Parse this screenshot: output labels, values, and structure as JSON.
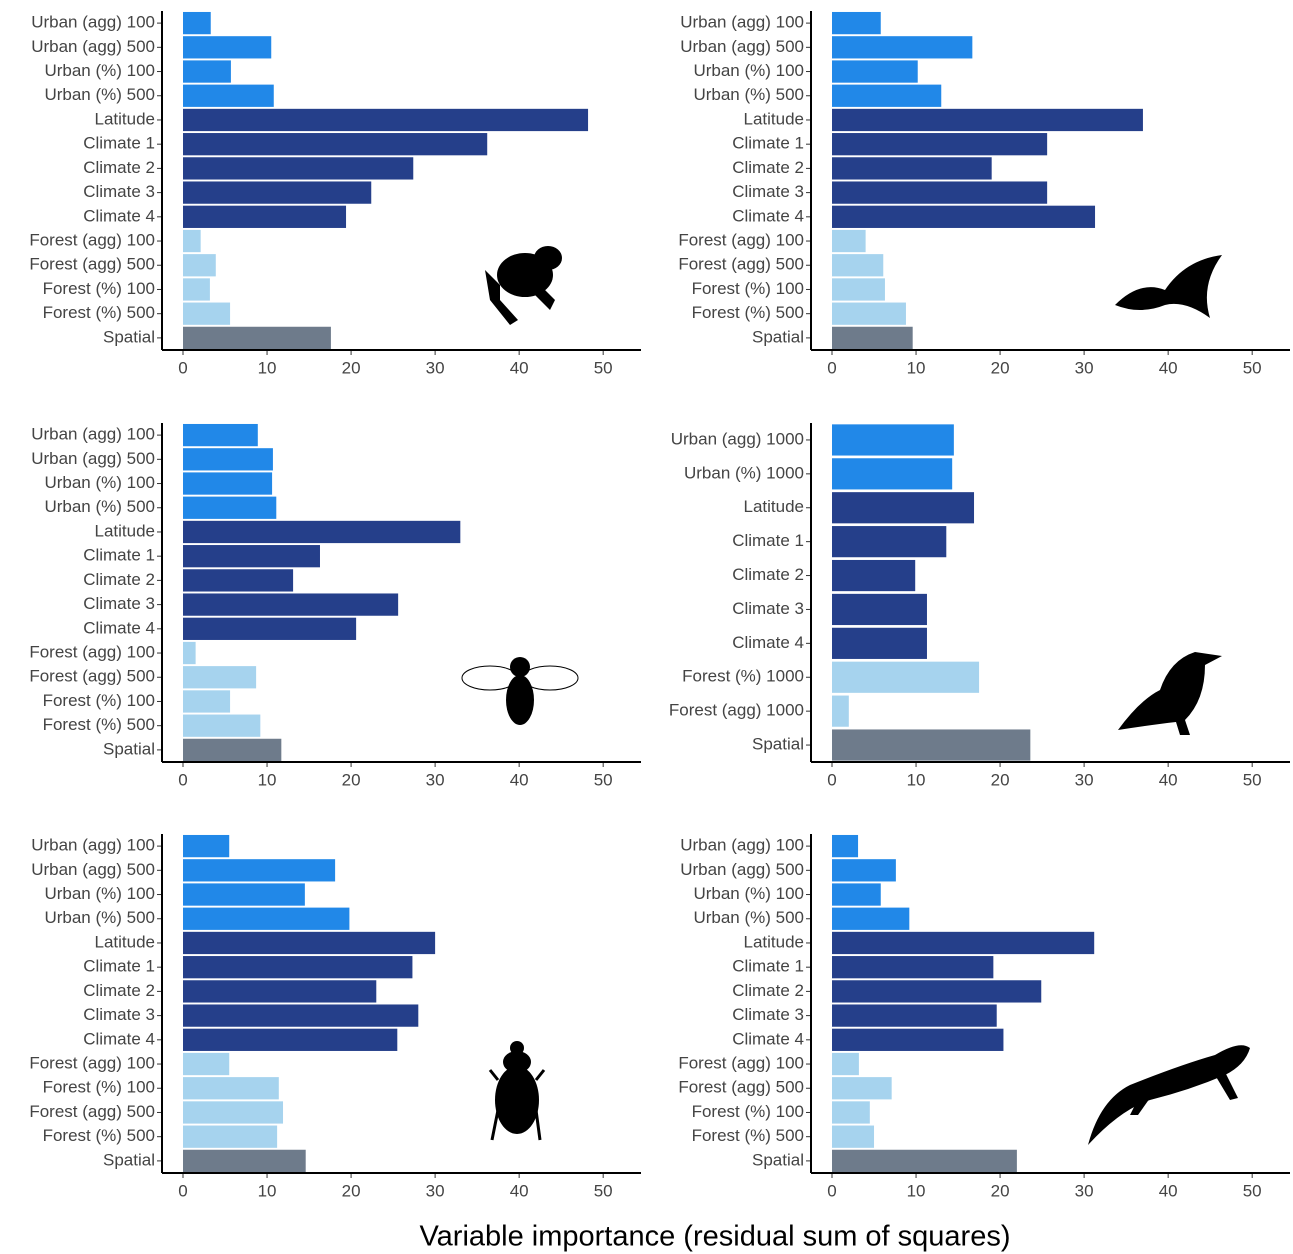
{
  "xlabel": "Variable importance (residual sum of squares)",
  "chart_data": [
    {
      "type": "barh",
      "xlim": [
        -2.5,
        54.5
      ],
      "xticks": [
        0,
        10,
        20,
        30,
        40,
        50
      ],
      "categories": [
        "Urban (agg) 100",
        "Urban (agg) 500",
        "Urban (%) 100",
        "Urban (%) 500",
        "Latitude",
        "Climate 1",
        "Climate 2",
        "Climate 3",
        "Climate 4",
        "Forest (agg) 100",
        "Forest (agg) 500",
        "Forest (%) 100",
        "Forest (%) 500",
        "Spatial"
      ],
      "values": [
        3.3,
        10.5,
        5.7,
        10.8,
        48.2,
        36.2,
        27.4,
        22.4,
        19.4,
        2.1,
        3.9,
        3.2,
        5.6,
        17.6
      ],
      "colors": [
        "#2188e8",
        "#2188e8",
        "#2188e8",
        "#2188e8",
        "#253f8a",
        "#253f8a",
        "#253f8a",
        "#253f8a",
        "#253f8a",
        "#a6d3ee",
        "#a6d3ee",
        "#a6d3ee",
        "#a6d3ee",
        "#6e7b8b"
      ]
    },
    {
      "type": "barh",
      "xlim": [
        -2.5,
        54.5
      ],
      "xticks": [
        0,
        10,
        20,
        30,
        40,
        50
      ],
      "categories": [
        "Urban (agg) 100",
        "Urban (agg) 500",
        "Urban (%) 100",
        "Urban (%) 500",
        "Latitude",
        "Climate 1",
        "Climate 2",
        "Climate 3",
        "Climate 4",
        "Forest (agg) 100",
        "Forest (agg) 500",
        "Forest (%) 100",
        "Forest (%) 500",
        "Spatial"
      ],
      "values": [
        5.8,
        16.7,
        10.2,
        13.0,
        37.0,
        25.6,
        19.0,
        25.6,
        31.3,
        4.0,
        6.1,
        6.3,
        8.8,
        9.6
      ],
      "colors": [
        "#2188e8",
        "#2188e8",
        "#2188e8",
        "#2188e8",
        "#253f8a",
        "#253f8a",
        "#253f8a",
        "#253f8a",
        "#253f8a",
        "#a6d3ee",
        "#a6d3ee",
        "#a6d3ee",
        "#a6d3ee",
        "#6e7b8b"
      ]
    },
    {
      "type": "barh",
      "xlim": [
        -2.5,
        54.5
      ],
      "xticks": [
        0,
        10,
        20,
        30,
        40,
        50
      ],
      "categories": [
        "Urban (agg) 100",
        "Urban (agg) 500",
        "Urban (%) 100",
        "Urban (%) 500",
        "Latitude",
        "Climate 1",
        "Climate 2",
        "Climate 3",
        "Climate 4",
        "Forest (agg) 100",
        "Forest (agg) 500",
        "Forest (%) 100",
        "Forest (%) 500",
        "Spatial"
      ],
      "values": [
        8.9,
        10.7,
        10.6,
        11.1,
        33.0,
        16.3,
        13.1,
        25.6,
        20.6,
        1.5,
        8.7,
        5.6,
        9.2,
        11.7
      ],
      "colors": [
        "#2188e8",
        "#2188e8",
        "#2188e8",
        "#2188e8",
        "#253f8a",
        "#253f8a",
        "#253f8a",
        "#253f8a",
        "#253f8a",
        "#a6d3ee",
        "#a6d3ee",
        "#a6d3ee",
        "#a6d3ee",
        "#6e7b8b"
      ]
    },
    {
      "type": "barh",
      "xlim": [
        -2.5,
        54.5
      ],
      "xticks": [
        0,
        10,
        20,
        30,
        40,
        50
      ],
      "categories": [
        "Urban (agg) 1000",
        "Urban (%) 1000",
        "Latitude",
        "Climate 1",
        "Climate 2",
        "Climate 3",
        "Climate 4",
        "Forest (%) 1000",
        "Forest (agg) 1000",
        "Spatial"
      ],
      "values": [
        14.5,
        14.3,
        16.9,
        13.6,
        9.9,
        11.3,
        11.3,
        17.5,
        2.0,
        23.6
      ],
      "colors": [
        "#2188e8",
        "#2188e8",
        "#253f8a",
        "#253f8a",
        "#253f8a",
        "#253f8a",
        "#253f8a",
        "#a6d3ee",
        "#a6d3ee",
        "#6e7b8b"
      ]
    },
    {
      "type": "barh",
      "xlim": [
        -2.5,
        54.5
      ],
      "xticks": [
        0,
        10,
        20,
        30,
        40,
        50
      ],
      "categories": [
        "Urban (agg) 100",
        "Urban (agg) 500",
        "Urban (%) 100",
        "Urban (%) 500",
        "Latitude",
        "Climate 1",
        "Climate 2",
        "Climate 3",
        "Climate 4",
        "Forest (agg) 100",
        "Forest (%) 100",
        "Forest (agg) 500",
        "Forest (%) 500",
        "Spatial"
      ],
      "values": [
        5.5,
        18.1,
        14.5,
        19.8,
        30.0,
        27.3,
        23.0,
        28.0,
        25.5,
        5.5,
        11.4,
        11.9,
        11.2,
        14.6
      ],
      "colors": [
        "#2188e8",
        "#2188e8",
        "#2188e8",
        "#2188e8",
        "#253f8a",
        "#253f8a",
        "#253f8a",
        "#253f8a",
        "#253f8a",
        "#a6d3ee",
        "#a6d3ee",
        "#a6d3ee",
        "#a6d3ee",
        "#6e7b8b"
      ]
    },
    {
      "type": "barh",
      "xlim": [
        -2.5,
        54.5
      ],
      "xticks": [
        0,
        10,
        20,
        30,
        40,
        50
      ],
      "categories": [
        "Urban (agg) 100",
        "Urban (agg) 500",
        "Urban (%) 100",
        "Urban (%) 500",
        "Latitude",
        "Climate 1",
        "Climate 2",
        "Climate 3",
        "Climate 4",
        "Forest (agg) 100",
        "Forest (agg) 500",
        "Forest (%) 100",
        "Forest (%) 500",
        "Spatial"
      ],
      "values": [
        3.1,
        7.6,
        5.8,
        9.2,
        31.2,
        19.2,
        24.9,
        19.6,
        20.4,
        3.2,
        7.1,
        4.5,
        5.0,
        22.0
      ],
      "colors": [
        "#2188e8",
        "#2188e8",
        "#2188e8",
        "#2188e8",
        "#253f8a",
        "#253f8a",
        "#253f8a",
        "#253f8a",
        "#253f8a",
        "#a6d3ee",
        "#a6d3ee",
        "#a6d3ee",
        "#a6d3ee",
        "#6e7b8b"
      ]
    }
  ]
}
